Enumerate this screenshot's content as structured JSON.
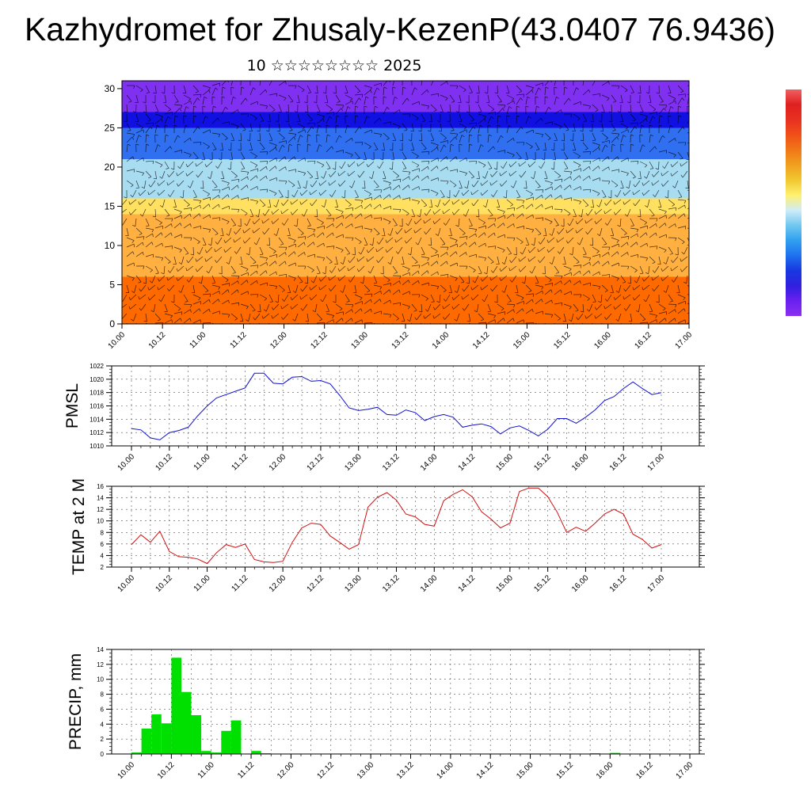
{
  "title": "Kazhydromet for Zhusaly-KezenP(43.0407 76.9436)",
  "subtitle": "10 ☆☆☆☆☆☆☆☆ 2025",
  "colors": {
    "pmsl_line": "#1010d0",
    "temp_line": "#d01010",
    "precip_bar": "#00e000",
    "frame": "#000000"
  },
  "chart_data": [
    {
      "type": "heatmap",
      "name": "wind-temperature cross-section",
      "xlabel": "",
      "ylabel": "",
      "ylim": [
        0,
        31
      ],
      "yticks": [
        0,
        5,
        10,
        15,
        20,
        25,
        30
      ],
      "xticks": [
        "10.00",
        "10.12",
        "11.00",
        "11.12",
        "12.00",
        "12.12",
        "13.00",
        "13.12",
        "14.00",
        "14.12",
        "15.00",
        "15.12",
        "16.00",
        "16.12",
        "17.00"
      ],
      "color_bands": [
        {
          "from": 0,
          "to": 6,
          "color": "#ff6a00"
        },
        {
          "from": 6,
          "to": 14,
          "color": "#ffb040"
        },
        {
          "from": 14,
          "to": 16,
          "color": "#ffe060"
        },
        {
          "from": 16,
          "to": 21,
          "color": "#a8dcf0"
        },
        {
          "from": 21,
          "to": 25,
          "color": "#3070f0"
        },
        {
          "from": 25,
          "to": 27,
          "color": "#1010e0"
        },
        {
          "from": 27,
          "to": 31,
          "color": "#8030f0"
        }
      ],
      "colorbar": [
        "#f06060",
        "#e02020",
        "#e83020",
        "#f05018",
        "#f07818",
        "#f0a020",
        "#f0c830",
        "#fff070",
        "#d0ecf8",
        "#70c8f0",
        "#30a0f0",
        "#2070f0",
        "#1838e0",
        "#3020e0",
        "#6a20f0",
        "#8a30f0"
      ]
    },
    {
      "type": "line",
      "ylabel": "PMSL",
      "ylim": [
        1010,
        1022
      ],
      "yticks": [
        1010,
        1012,
        1014,
        1016,
        1018,
        1020,
        1022
      ],
      "xticks": [
        "10.00",
        "10.12",
        "11.00",
        "11.12",
        "12.00",
        "12.12",
        "13.00",
        "13.12",
        "14.00",
        "14.12",
        "15.00",
        "15.12",
        "16.00",
        "16.12",
        "17.00"
      ],
      "x_hours": [
        0,
        3,
        6,
        9,
        12,
        15,
        18,
        21,
        24,
        27,
        30,
        33,
        36,
        39,
        42,
        45,
        48,
        51,
        54,
        57,
        60,
        63,
        66,
        69,
        72,
        75,
        78,
        81,
        84,
        87,
        90,
        93,
        96,
        99,
        102,
        105,
        108,
        111,
        114,
        117,
        120,
        123,
        126,
        129,
        132,
        135,
        138,
        141,
        144,
        147,
        150,
        153,
        156,
        159,
        162,
        165,
        168
      ],
      "values": [
        1012.6,
        1012.4,
        1011.2,
        1010.9,
        1012.0,
        1012.3,
        1012.8,
        1014.5,
        1016.0,
        1017.2,
        1017.7,
        1018.2,
        1018.7,
        1020.9,
        1020.9,
        1019.4,
        1019.3,
        1020.3,
        1020.4,
        1019.7,
        1019.8,
        1019.3,
        1017.6,
        1015.7,
        1015.3,
        1015.5,
        1015.8,
        1014.7,
        1014.6,
        1015.4,
        1015.0,
        1013.8,
        1014.4,
        1014.7,
        1014.3,
        1012.8,
        1013.1,
        1013.3,
        1012.9,
        1011.8,
        1012.7,
        1013.0,
        1012.3,
        1011.5,
        1012.5,
        1014.1,
        1014.1,
        1013.4,
        1014.3,
        1015.4,
        1016.8,
        1017.4,
        1018.6,
        1019.6,
        1018.6,
        1017.7,
        1018.0
      ]
    },
    {
      "type": "line",
      "ylabel": "TEMP at 2 M",
      "ylim": [
        2,
        16
      ],
      "yticks": [
        2,
        4,
        6,
        8,
        10,
        12,
        14,
        16
      ],
      "xticks": [
        "10.00",
        "10.12",
        "11.00",
        "11.12",
        "12.00",
        "12.12",
        "13.00",
        "13.12",
        "14.00",
        "14.12",
        "15.00",
        "15.12",
        "16.00",
        "16.12",
        "17.00"
      ],
      "x_hours": [
        0,
        3,
        6,
        9,
        12,
        15,
        18,
        21,
        24,
        27,
        30,
        33,
        36,
        39,
        42,
        45,
        48,
        51,
        54,
        57,
        60,
        63,
        66,
        69,
        72,
        75,
        78,
        81,
        84,
        87,
        90,
        93,
        96,
        99,
        102,
        105,
        108,
        111,
        114,
        117,
        120,
        123,
        126,
        129,
        132,
        135,
        138,
        141,
        144,
        147,
        150,
        153,
        156,
        159,
        162,
        165,
        168
      ],
      "values": [
        5.9,
        7.6,
        6.3,
        8.2,
        4.7,
        3.8,
        3.7,
        3.4,
        2.6,
        4.5,
        5.9,
        5.4,
        6.0,
        3.3,
        2.9,
        2.8,
        3.0,
        6.3,
        8.8,
        9.6,
        9.4,
        7.4,
        6.3,
        5.1,
        5.9,
        12.4,
        14.1,
        14.9,
        13.6,
        11.2,
        10.7,
        9.4,
        9.1,
        13.5,
        14.6,
        15.4,
        14.2,
        11.6,
        10.3,
        8.8,
        9.6,
        15.1,
        15.7,
        15.7,
        14.2,
        11.5,
        8.0,
        8.9,
        8.2,
        9.6,
        11.2,
        12.0,
        11.2,
        7.7,
        6.8,
        5.3,
        5.9
      ]
    },
    {
      "type": "bar",
      "ylabel": "PRECIP, mm",
      "ylim": [
        0,
        14
      ],
      "yticks": [
        0,
        2,
        4,
        6,
        8,
        10,
        12,
        14
      ],
      "xticks": [
        "10.00",
        "10.12",
        "11.00",
        "11.12",
        "12.00",
        "12.12",
        "13.00",
        "13.12",
        "14.00",
        "14.12",
        "15.00",
        "15.12",
        "16.00",
        "16.12",
        "17.00"
      ],
      "x_hours": [
        0,
        3,
        6,
        9,
        12,
        15,
        18,
        21,
        24,
        27,
        30,
        33,
        36,
        39,
        42,
        45,
        48,
        51,
        54,
        57,
        60,
        63,
        66,
        69,
        72,
        75,
        78,
        81,
        84,
        87,
        90,
        93,
        96,
        99,
        102,
        105,
        108,
        111,
        114,
        117,
        120,
        123,
        126,
        129,
        132,
        135,
        138,
        141,
        144,
        147,
        150,
        153,
        156,
        159,
        162,
        165
      ],
      "values": [
        0.2,
        3.4,
        5.3,
        4.1,
        12.9,
        8.3,
        5.2,
        0.4,
        0.2,
        3.1,
        4.5,
        0,
        0.4,
        0.1,
        0,
        0,
        0,
        0,
        0,
        0,
        0,
        0,
        0,
        0,
        0,
        0,
        0,
        0,
        0,
        0,
        0,
        0,
        0,
        0,
        0,
        0,
        0,
        0,
        0,
        0,
        0,
        0,
        0,
        0,
        0,
        0,
        0.1,
        0,
        0.15,
        0,
        0,
        0,
        0,
        0,
        0,
        0
      ]
    }
  ]
}
